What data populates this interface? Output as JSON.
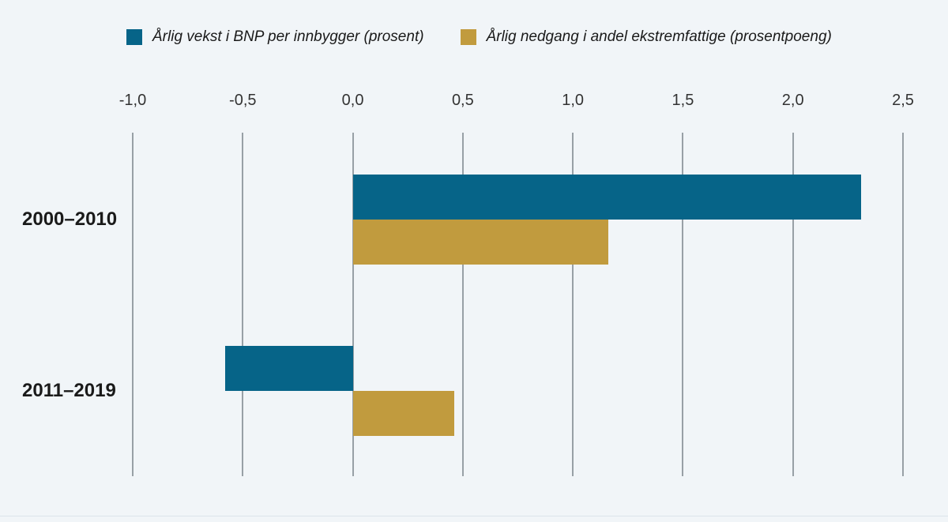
{
  "page": {
    "background": "#F1F5F8",
    "bottom_border_color": "#DCE3EA"
  },
  "legend": {
    "items": [
      {
        "label": "Årlig vekst i BNP per innbygger (prosent)",
        "color": "#066488",
        "icon": "teal-square-swatch"
      },
      {
        "label": "Årlig nedgang i andel ekstremfattige (prosentpoeng)",
        "color": "#C19B3E",
        "icon": "gold-square-swatch"
      }
    ]
  },
  "chart_data": {
    "type": "bar",
    "orientation": "horizontal",
    "title": "",
    "xlabel": "",
    "ylabel": "",
    "categories": [
      "2000–2010",
      "2011–2019"
    ],
    "series": [
      {
        "name": "Årlig vekst i BNP per innbygger (prosent)",
        "color": "#066488",
        "values": [
          2.31,
          -0.58
        ]
      },
      {
        "name": "Årlig nedgang i andel ekstremfattige (prosentpoeng)",
        "color": "#C19B3E",
        "values": [
          1.16,
          0.46
        ]
      }
    ],
    "xlim": [
      -1.0,
      2.5
    ],
    "x_ticks": [
      {
        "value": -1.0,
        "label": "-1,0"
      },
      {
        "value": -0.5,
        "label": "-0,5"
      },
      {
        "value": 0.0,
        "label": "0,0"
      },
      {
        "value": 0.5,
        "label": "0,5"
      },
      {
        "value": 1.0,
        "label": "1,0"
      },
      {
        "value": 1.5,
        "label": "1,5"
      },
      {
        "value": 2.0,
        "label": "2,0"
      },
      {
        "value": 2.5,
        "label": "2,5"
      }
    ],
    "grid": "vertical-gridlines-on",
    "gridline_color": "#98A0A6",
    "legend_position": "top",
    "decimal_separator": ","
  }
}
